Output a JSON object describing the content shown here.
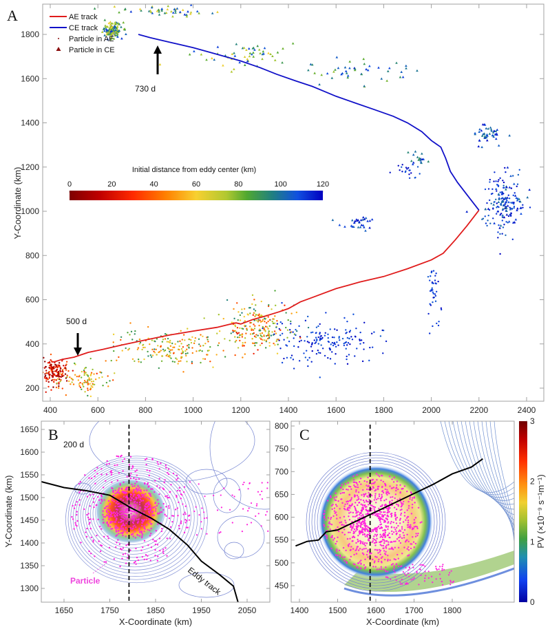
{
  "figure": {
    "panels": [
      "A",
      "B",
      "C"
    ]
  },
  "chart_data": [
    {
      "id": "A",
      "type": "scatter",
      "panel_letter": "A",
      "xlabel": "",
      "ylabel": "Y-Coordinate (km)",
      "xlim": [
        300,
        2520
      ],
      "ylim": [
        140,
        1935
      ],
      "xticks": [
        400,
        600,
        800,
        1000,
        1200,
        1400,
        1600,
        1800,
        2000,
        2200,
        2400
      ],
      "yticks": [
        200,
        400,
        600,
        800,
        1000,
        1200,
        1400,
        1600,
        1800
      ],
      "legend": {
        "position": "top-left",
        "entries": [
          {
            "label": "AE track",
            "kind": "line",
            "color": "#e01b1b"
          },
          {
            "label": "CE track",
            "kind": "line",
            "color": "#1010c8"
          },
          {
            "label": "Particle in AE",
            "kind": "dot",
            "color": "#8b1010"
          },
          {
            "label": "Particle in CE",
            "kind": "triangle",
            "color": "#8b1010"
          }
        ]
      },
      "colorbar": {
        "title": "Initial distance from eddy center (km)",
        "ticks": [
          0,
          20,
          40,
          60,
          80,
          100,
          120
        ],
        "range": [
          0,
          120
        ],
        "colormap": "jet-reversed"
      },
      "annotations": [
        {
          "text": "730 d",
          "x": 405,
          "y": 1810
        },
        {
          "text": "500 d",
          "x": 410,
          "y": 320
        }
      ],
      "series": [
        {
          "name": "AE track",
          "color": "#e01b1b",
          "points": [
            [
              405,
              318
            ],
            [
              420,
              320
            ],
            [
              450,
              330
            ],
            [
              500,
              340
            ],
            [
              560,
              362
            ],
            [
              620,
              375
            ],
            [
              700,
              395
            ],
            [
              800,
              418
            ],
            [
              900,
              440
            ],
            [
              1000,
              458
            ],
            [
              1100,
              475
            ],
            [
              1150,
              488
            ],
            [
              1180,
              495
            ],
            [
              1200,
              490
            ],
            [
              1250,
              510
            ],
            [
              1300,
              525
            ],
            [
              1360,
              545
            ],
            [
              1400,
              560
            ],
            [
              1450,
              590
            ],
            [
              1500,
              610
            ],
            [
              1600,
              650
            ],
            [
              1700,
              680
            ],
            [
              1800,
              705
            ],
            [
              1900,
              740
            ],
            [
              2000,
              780
            ],
            [
              2050,
              810
            ],
            [
              2100,
              870
            ],
            [
              2150,
              935
            ],
            [
              2200,
              1005
            ]
          ]
        },
        {
          "name": "CE track",
          "color": "#1010c8",
          "points": [
            [
              2200,
              1005
            ],
            [
              2160,
              1060
            ],
            [
              2110,
              1130
            ],
            [
              2080,
              1180
            ],
            [
              2060,
              1240
            ],
            [
              2040,
              1290
            ],
            [
              2000,
              1320
            ],
            [
              1960,
              1360
            ],
            [
              1900,
              1400
            ],
            [
              1840,
              1430
            ],
            [
              1760,
              1460
            ],
            [
              1680,
              1490
            ],
            [
              1600,
              1520
            ],
            [
              1500,
              1565
            ],
            [
              1430,
              1590
            ],
            [
              1350,
              1620
            ],
            [
              1280,
              1650
            ],
            [
              1200,
              1680
            ],
            [
              1100,
              1710
            ],
            [
              1000,
              1740
            ],
            [
              900,
              1765
            ],
            [
              820,
              1785
            ],
            [
              770,
              1800
            ]
          ]
        }
      ],
      "particle_clusters": [
        {
          "type": "CE",
          "cx": 660,
          "cy": 1820,
          "spread": [
            40,
            35
          ],
          "n": 140,
          "dist_range": [
            60,
            115
          ]
        },
        {
          "type": "CE",
          "cx": 900,
          "cy": 1905,
          "spread": [
            180,
            20
          ],
          "n": 50,
          "dist_range": [
            60,
            115
          ]
        },
        {
          "type": "CE",
          "cx": 1200,
          "cy": 1710,
          "spread": [
            200,
            60
          ],
          "n": 55,
          "dist_range": [
            60,
            115
          ]
        },
        {
          "type": "CE",
          "cx": 1650,
          "cy": 1620,
          "spread": [
            250,
            80
          ],
          "n": 45,
          "dist_range": [
            75,
            118
          ]
        },
        {
          "type": "CE",
          "cx": 2230,
          "cy": 1350,
          "spread": [
            60,
            40
          ],
          "n": 45,
          "dist_range": [
            95,
            120
          ]
        },
        {
          "type": "CE",
          "cx": 1940,
          "cy": 1240,
          "spread": [
            40,
            40
          ],
          "n": 18,
          "dist_range": [
            90,
            118
          ]
        },
        {
          "type": "CE",
          "cx": 1700,
          "cy": 945,
          "spread": [
            80,
            30
          ],
          "n": 30,
          "dist_range": [
            100,
            120
          ]
        },
        {
          "type": "CE",
          "cx": 2310,
          "cy": 1040,
          "spread": [
            80,
            100
          ],
          "n": 70,
          "dist_range": [
            95,
            120
          ]
        },
        {
          "type": "AE",
          "cx": 2290,
          "cy": 1040,
          "spread": [
            90,
            160
          ],
          "n": 110,
          "dist_range": [
            100,
            120
          ]
        },
        {
          "type": "AE",
          "cx": 2010,
          "cy": 650,
          "spread": [
            30,
            120
          ],
          "n": 40,
          "dist_range": [
            105,
            120
          ]
        },
        {
          "type": "AE",
          "cx": 1890,
          "cy": 1180,
          "spread": [
            70,
            30
          ],
          "n": 20,
          "dist_range": [
            105,
            120
          ]
        },
        {
          "type": "AE",
          "cx": 1550,
          "cy": 410,
          "spread": [
            230,
            100
          ],
          "n": 170,
          "dist_range": [
            105,
            120
          ]
        },
        {
          "type": "AE",
          "cx": 420,
          "cy": 270,
          "spread": [
            60,
            60
          ],
          "n": 160,
          "dist_range": [
            0,
            40
          ]
        },
        {
          "type": "AE",
          "cx": 560,
          "cy": 240,
          "spread": [
            100,
            60
          ],
          "n": 90,
          "dist_range": [
            30,
            90
          ]
        },
        {
          "type": "AE",
          "cx": 900,
          "cy": 380,
          "spread": [
            220,
            80
          ],
          "n": 200,
          "dist_range": [
            35,
            95
          ]
        },
        {
          "type": "AE",
          "cx": 1280,
          "cy": 470,
          "spread": [
            130,
            120
          ],
          "n": 220,
          "dist_range": [
            25,
            100
          ]
        }
      ]
    },
    {
      "id": "B",
      "type": "scatter",
      "panel_letter": "B",
      "annotation_day": "200 d",
      "xlabel": "X-Coordinate (km)",
      "ylabel": "Y-Coordinate (km)",
      "xlim": [
        1600,
        2100
      ],
      "ylim": [
        1270,
        1670
      ],
      "xticks": [
        1650,
        1750,
        1850,
        1950,
        2050
      ],
      "yticks": [
        1300,
        1350,
        1400,
        1450,
        1500,
        1550,
        1600,
        1650
      ],
      "dashed_line_x": 1792,
      "particle_label": "Particle",
      "particle_color": "#ff22dd",
      "track_label": "Eddy track",
      "eddy": {
        "cx": 1795,
        "cy": 1470,
        "core_r": 50,
        "outer_r": 90
      },
      "track": [
        [
          1600,
          1535
        ],
        [
          1650,
          1522
        ],
        [
          1700,
          1515
        ],
        [
          1750,
          1505
        ],
        [
          1795,
          1478
        ],
        [
          1840,
          1455
        ],
        [
          1880,
          1430
        ],
        [
          1920,
          1395
        ],
        [
          1950,
          1360
        ],
        [
          1990,
          1330
        ],
        [
          2020,
          1305
        ],
        [
          2030,
          1270
        ]
      ]
    },
    {
      "id": "C",
      "type": "scatter",
      "panel_letter": "C",
      "xlabel": "X-Coordinate (km)",
      "ylabel": "",
      "xlim": [
        1390,
        1880
      ],
      "ylim": [
        415,
        810
      ],
      "xticks": [
        1400,
        1500,
        1600,
        1700,
        1800
      ],
      "yticks": [
        450,
        500,
        550,
        600,
        650,
        700,
        750,
        800
      ],
      "dashed_line_x": 1585,
      "particle_color": "#ff22dd",
      "eddy": {
        "cx": 1600,
        "cy": 590,
        "r": 140
      },
      "track": [
        [
          1390,
          537
        ],
        [
          1420,
          547
        ],
        [
          1450,
          550
        ],
        [
          1470,
          568
        ],
        [
          1500,
          572
        ],
        [
          1550,
          592
        ],
        [
          1600,
          612
        ],
        [
          1650,
          632
        ],
        [
          1700,
          652
        ],
        [
          1750,
          672
        ],
        [
          1800,
          695
        ],
        [
          1850,
          710
        ],
        [
          1880,
          728
        ]
      ],
      "colorbar": {
        "label": "PV (×10⁻⁹ s⁻¹m⁻¹)",
        "ticks": [
          0,
          1,
          2,
          3
        ],
        "range": [
          0,
          3
        ],
        "colormap": "jet"
      }
    }
  ]
}
